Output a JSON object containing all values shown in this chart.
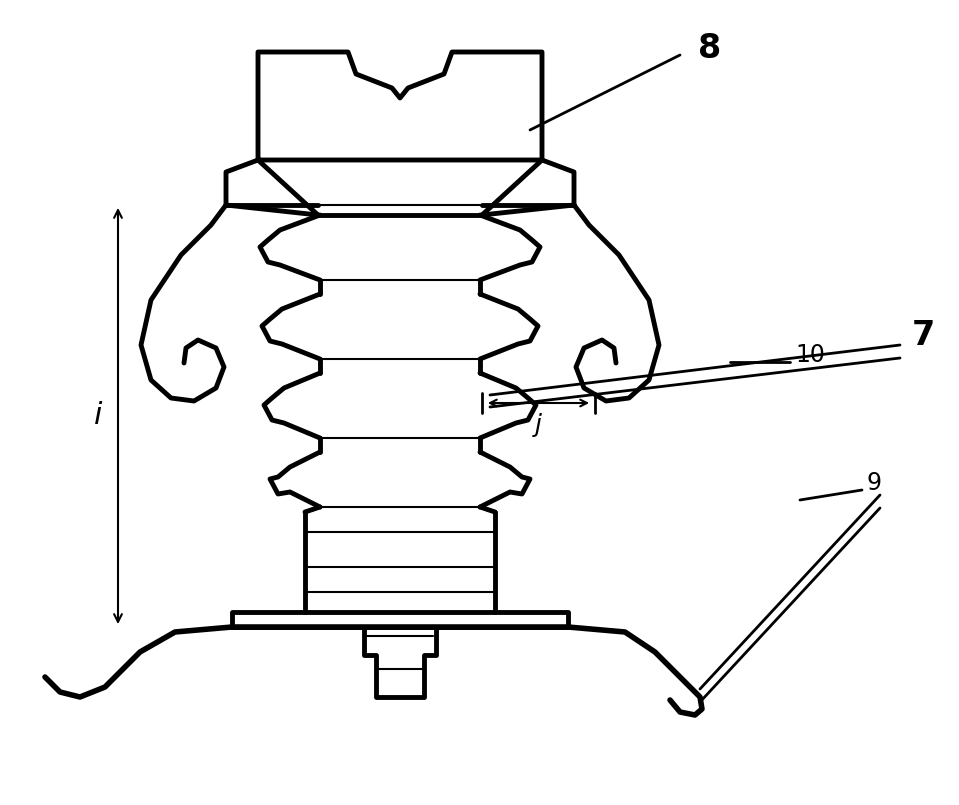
{
  "bg_color": "#ffffff",
  "line_color": "#000000",
  "lw": 3.5,
  "lw_thin": 1.5,
  "figsize": [
    9.59,
    8.05
  ],
  "dpi": 100
}
